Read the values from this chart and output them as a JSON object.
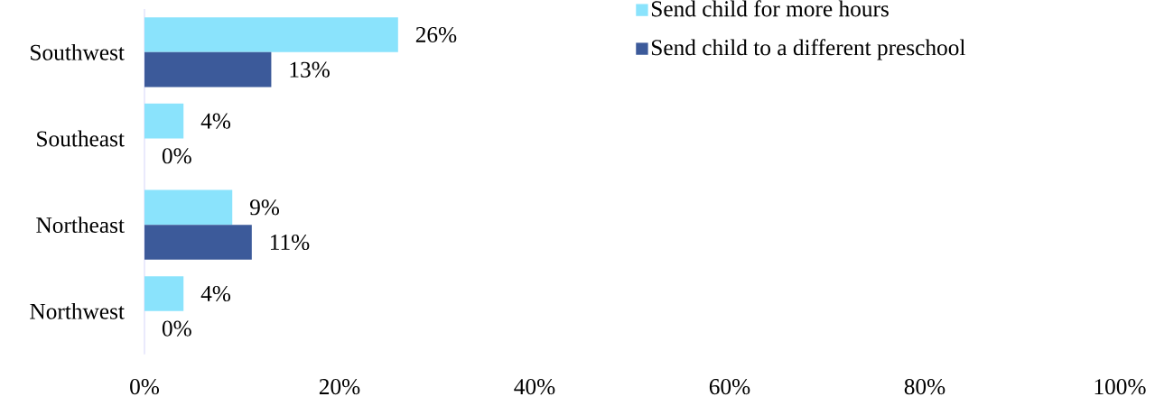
{
  "chart_data": {
    "type": "bar",
    "orientation": "horizontal",
    "categories": [
      "Southwest",
      "Southeast",
      "Northeast",
      "Northwest"
    ],
    "series": [
      {
        "name": "Send child for more hours",
        "color": "#8ae3fc",
        "values": [
          26,
          4,
          9,
          4
        ],
        "value_labels": [
          "26%",
          "4%",
          "9%",
          "4%"
        ]
      },
      {
        "name": "Send child to a different preschool",
        "color": "#3c5a9a",
        "values": [
          13,
          0,
          11,
          0
        ],
        "value_labels": [
          "13%",
          "0%",
          "11%",
          "0%"
        ]
      }
    ],
    "xlim": [
      0,
      100
    ],
    "xticks": [
      {
        "value": 0,
        "label": "0%"
      },
      {
        "value": 20,
        "label": "20%"
      },
      {
        "value": 40,
        "label": "40%"
      },
      {
        "value": 60,
        "label": "60%"
      },
      {
        "value": 80,
        "label": "80%"
      },
      {
        "value": 100,
        "label": "100%"
      }
    ],
    "legend": "top right",
    "grid": false
  }
}
